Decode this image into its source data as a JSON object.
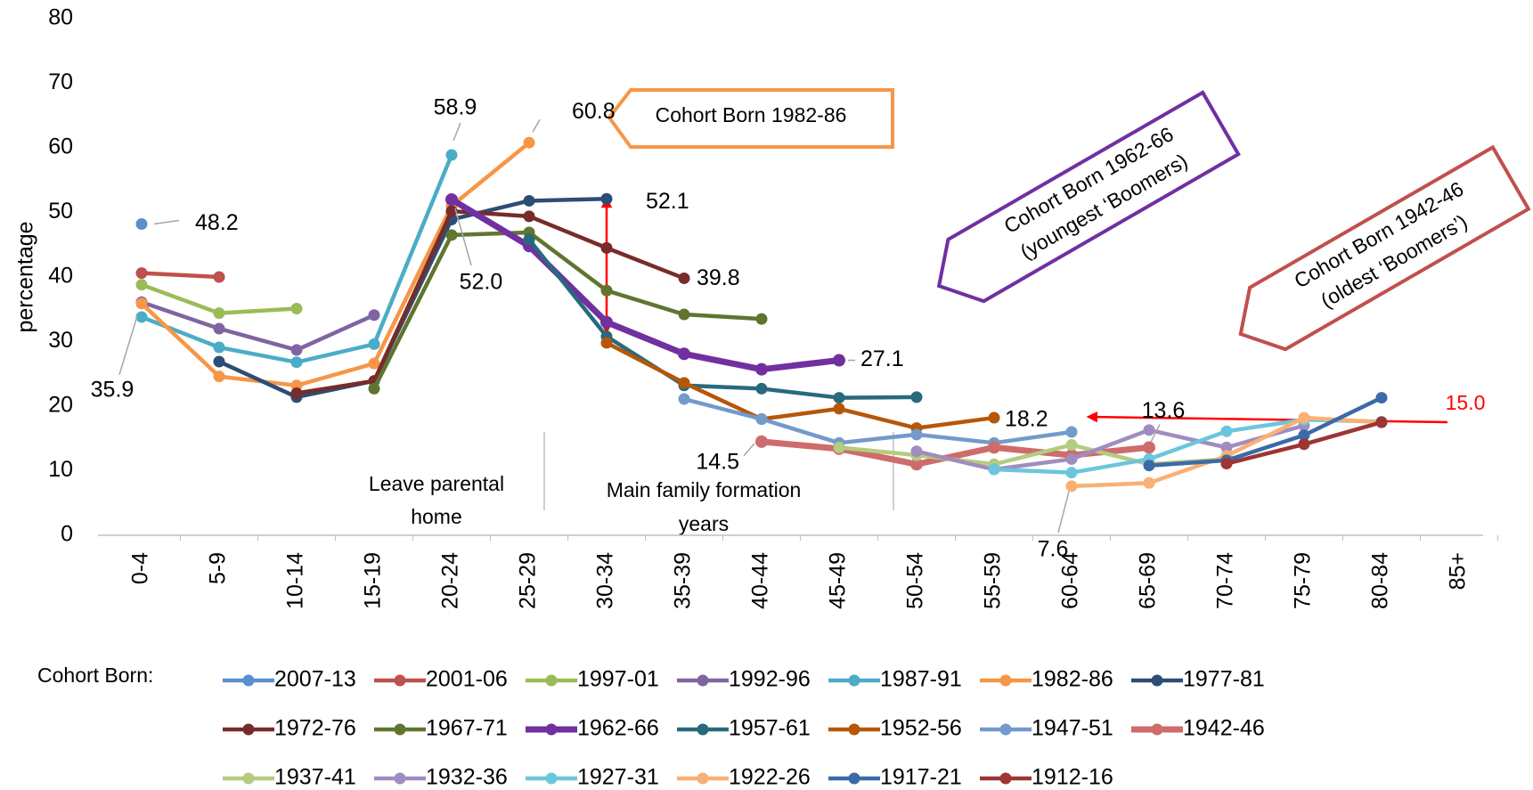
{
  "chart_data": {
    "type": "line",
    "y_label": "percentage",
    "categories": [
      "0-4",
      "5-9",
      "10-14",
      "15-19",
      "20-24",
      "25-29",
      "30-34",
      "35-39",
      "40-44",
      "45-49",
      "50-54",
      "55-59",
      "60-64",
      "65-69",
      "70-74",
      "75-79",
      "80-84",
      "85+"
    ],
    "ylim": [
      0,
      80
    ],
    "yticks": [
      0,
      10,
      20,
      30,
      40,
      50,
      60,
      70,
      80
    ],
    "grid": false,
    "legend_title": "Cohort Born:",
    "legend_position": "bottom",
    "series": [
      {
        "name": "2007-13",
        "color": "#5b8fce",
        "values": [
          48.2,
          null,
          null,
          null,
          null,
          null,
          null,
          null,
          null,
          null,
          null,
          null,
          null,
          null,
          null,
          null,
          null,
          null
        ],
        "value_labels": [
          "48.2",
          null,
          null,
          null,
          null,
          null,
          null,
          null,
          null,
          null,
          null,
          null,
          null,
          null,
          null,
          null,
          null,
          null
        ]
      },
      {
        "name": "2001-06",
        "color": "#c0504d",
        "values": [
          40.6,
          40.0,
          null,
          null,
          null,
          null,
          null,
          null,
          null,
          null,
          null,
          null,
          null,
          null,
          null,
          null,
          null,
          null
        ]
      },
      {
        "name": "1997-01",
        "color": "#9bbb59",
        "values": [
          38.8,
          34.4,
          35.1,
          null,
          null,
          null,
          null,
          null,
          null,
          null,
          null,
          null,
          null,
          null,
          null,
          null,
          null,
          null
        ]
      },
      {
        "name": "1992-96",
        "color": "#8064a2",
        "values": [
          36.1,
          32.0,
          28.7,
          34.1,
          null,
          null,
          null,
          null,
          null,
          null,
          null,
          null,
          null,
          null,
          null,
          null,
          null,
          null
        ]
      },
      {
        "name": "1987-91",
        "color": "#4bacc6",
        "values": [
          33.8,
          29.1,
          26.8,
          29.6,
          58.9,
          null,
          null,
          null,
          null,
          null,
          null,
          null,
          null,
          null,
          null,
          null,
          null,
          null
        ],
        "value_labels": [
          null,
          null,
          null,
          null,
          "58.9",
          null,
          null,
          null,
          null,
          null,
          null,
          null,
          null,
          null,
          null,
          null,
          null,
          null
        ]
      },
      {
        "name": "1982-86",
        "color": "#f79646",
        "values": [
          35.9,
          24.6,
          23.2,
          26.6,
          51.0,
          60.8,
          null,
          null,
          null,
          null,
          null,
          null,
          null,
          null,
          null,
          null,
          null,
          null
        ],
        "value_labels": [
          "35.9",
          null,
          null,
          null,
          null,
          "60.8",
          null,
          null,
          null,
          null,
          null,
          null,
          null,
          null,
          null,
          null,
          null,
          null
        ]
      },
      {
        "name": "1977-81",
        "color": "#2c4d75",
        "values": [
          null,
          26.9,
          21.4,
          23.9,
          48.9,
          51.8,
          52.1,
          null,
          null,
          null,
          null,
          null,
          null,
          null,
          null,
          null,
          null,
          null
        ],
        "value_labels": [
          null,
          null,
          null,
          null,
          null,
          null,
          "52.1",
          null,
          null,
          null,
          null,
          null,
          null,
          null,
          null,
          null,
          null,
          null
        ]
      },
      {
        "name": "1972-76",
        "color": "#772c2a",
        "values": [
          null,
          null,
          22.0,
          23.9,
          50.2,
          49.4,
          44.5,
          39.8,
          null,
          null,
          null,
          null,
          null,
          null,
          null,
          null,
          null,
          null
        ],
        "value_labels": [
          null,
          null,
          null,
          null,
          null,
          null,
          null,
          "39.8",
          null,
          null,
          null,
          null,
          null,
          null,
          null,
          null,
          null,
          null
        ]
      },
      {
        "name": "1967-71",
        "color": "#5f7530",
        "values": [
          null,
          null,
          null,
          22.7,
          46.5,
          46.9,
          37.9,
          34.2,
          33.5,
          null,
          null,
          null,
          null,
          null,
          null,
          null,
          null,
          null
        ]
      },
      {
        "name": "1962-66",
        "color": "#7030a0",
        "line_width": 7,
        "values": [
          null,
          null,
          null,
          null,
          52.0,
          44.8,
          33.0,
          28.1,
          25.7,
          27.1,
          null,
          null,
          null,
          null,
          null,
          null,
          null,
          null
        ],
        "value_labels": [
          null,
          null,
          null,
          null,
          "52.0",
          null,
          null,
          null,
          null,
          "27.1",
          null,
          null,
          null,
          null,
          null,
          null,
          null,
          null
        ]
      },
      {
        "name": "1957-61",
        "color": "#276a7c",
        "values": [
          null,
          null,
          null,
          null,
          null,
          45.8,
          30.8,
          23.2,
          22.7,
          21.3,
          21.4,
          null,
          null,
          null,
          null,
          null,
          null,
          null
        ]
      },
      {
        "name": "1952-56",
        "color": "#b65708",
        "values": [
          null,
          null,
          null,
          null,
          null,
          null,
          29.8,
          23.6,
          18.0,
          19.6,
          16.6,
          18.2,
          null,
          null,
          null,
          null,
          null,
          null
        ],
        "value_labels": [
          null,
          null,
          null,
          null,
          null,
          null,
          null,
          null,
          null,
          null,
          null,
          "18.2",
          null,
          null,
          null,
          null,
          null,
          null
        ]
      },
      {
        "name": "1947-51",
        "color": "#729aca",
        "values": [
          null,
          null,
          null,
          null,
          null,
          null,
          null,
          21.1,
          18.0,
          14.3,
          15.6,
          14.3,
          16.0,
          null,
          null,
          null,
          null,
          null
        ]
      },
      {
        "name": "1942-46",
        "color": "#cd6c6a",
        "line_width": 7,
        "values": [
          null,
          null,
          null,
          null,
          null,
          null,
          null,
          null,
          14.5,
          13.4,
          11.0,
          13.6,
          12.4,
          13.6,
          null,
          null,
          null,
          null
        ],
        "value_labels": [
          null,
          null,
          null,
          null,
          null,
          null,
          null,
          null,
          "14.5",
          null,
          null,
          null,
          null,
          "13.6",
          null,
          null,
          null,
          null
        ]
      },
      {
        "name": "1937-41",
        "color": "#b3cc7f",
        "values": [
          null,
          null,
          null,
          null,
          null,
          null,
          null,
          null,
          null,
          13.6,
          12.4,
          11.0,
          14.0,
          11.0,
          11.8,
          null,
          null,
          null
        ]
      },
      {
        "name": "1932-36",
        "color": "#a18cbf",
        "values": [
          null,
          null,
          null,
          null,
          null,
          null,
          null,
          null,
          null,
          null,
          13.0,
          10.2,
          11.8,
          16.3,
          13.6,
          17.0,
          null,
          null
        ]
      },
      {
        "name": "1927-31",
        "color": "#6ac6dc",
        "values": [
          null,
          null,
          null,
          null,
          null,
          null,
          null,
          null,
          null,
          null,
          null,
          10.2,
          9.7,
          11.8,
          16.1,
          17.9,
          17.6,
          null
        ]
      },
      {
        "name": "1922-26",
        "color": "#f9b074",
        "values": [
          null,
          null,
          null,
          null,
          null,
          null,
          null,
          null,
          null,
          null,
          null,
          null,
          7.6,
          8.1,
          12.3,
          18.2,
          17.5,
          null
        ],
        "value_labels": [
          null,
          null,
          null,
          null,
          null,
          null,
          null,
          null,
          null,
          null,
          null,
          null,
          "7.6",
          null,
          null,
          null,
          null,
          null
        ]
      },
      {
        "name": "1917-21",
        "color": "#3a6aa8",
        "values": [
          null,
          null,
          null,
          null,
          null,
          null,
          null,
          null,
          null,
          null,
          null,
          null,
          null,
          10.8,
          11.6,
          15.5,
          21.3,
          null
        ]
      },
      {
        "name": "1912-16",
        "color": "#9c3533",
        "values": [
          null,
          null,
          null,
          null,
          null,
          null,
          null,
          null,
          null,
          null,
          null,
          null,
          null,
          null,
          11.1,
          14.1,
          17.5,
          null
        ]
      }
    ],
    "annotations": {
      "box_1982": "Cohort Born 1982-86",
      "box_1962": [
        "Cohort Born 1962-66",
        "(youngest ‘Boomers)"
      ],
      "box_1942": [
        "Cohort Born 1942-46",
        "(oldest ‘Boomers’)"
      ],
      "leave_home": [
        "Leave parental",
        "home"
      ],
      "family": [
        "Main family formation",
        "years"
      ],
      "red_value": "15.0"
    }
  }
}
